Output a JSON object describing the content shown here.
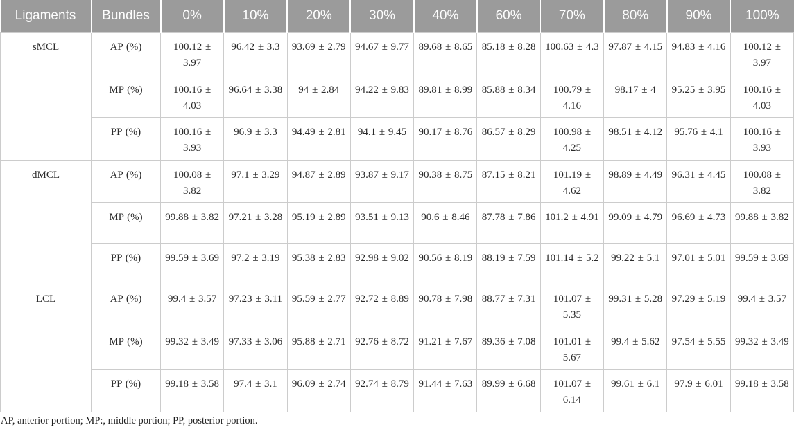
{
  "colors": {
    "header_bg": "#9b9b9b",
    "header_text": "#fdfdfd",
    "border": "#cccccc",
    "body_text": "#2b2b2b"
  },
  "footnote": "AP, anterior portion; MP:, middle portion; PP, posterior portion.",
  "table": {
    "header": [
      "Ligaments",
      "Bundles",
      "0%",
      "10%",
      "20%",
      "30%",
      "40%",
      "60%",
      "70%",
      "80%",
      "90%",
      "100%"
    ],
    "groups": [
      {
        "ligament": "sMCL",
        "rows": [
          {
            "bundle": "AP (%)",
            "values": [
              "100.12 ± 3.97",
              "96.42 ± 3.3",
              "93.69 ± 2.79",
              "94.67 ± 9.77",
              "89.68 ± 8.65",
              "85.18 ± 8.28",
              "100.63 ± 4.3",
              "97.87 ± 4.15",
              "94.83 ± 4.16",
              "100.12 ± 3.97"
            ]
          },
          {
            "bundle": "MP (%)",
            "values": [
              "100.16 ± 4.03",
              "96.64 ± 3.38",
              "94 ± 2.84",
              "94.22 ± 9.83",
              "89.81 ± 8.99",
              "85.88 ± 8.34",
              "100.79 ± 4.16",
              "98.17 ± 4",
              "95.25 ± 3.95",
              "100.16 ± 4.03"
            ]
          },
          {
            "bundle": "PP (%)",
            "values": [
              "100.16 ± 3.93",
              "96.9 ± 3.3",
              "94.49 ± 2.81",
              "94.1 ± 9.45",
              "90.17 ± 8.76",
              "86.57 ± 8.29",
              "100.98 ± 4.25",
              "98.51 ± 4.12",
              "95.76 ± 4.1",
              "100.16 ± 3.93"
            ]
          }
        ]
      },
      {
        "ligament": "dMCL",
        "rows": [
          {
            "bundle": "AP (%)",
            "values": [
              "100.08 ± 3.82",
              "97.1 ± 3.29",
              "94.87 ± 2.89",
              "93.87 ± 9.17",
              "90.38 ± 8.75",
              "87.15 ± 8.21",
              "101.19 ± 4.62",
              "98.89 ± 4.49",
              "96.31 ± 4.45",
              "100.08 ± 3.82"
            ]
          },
          {
            "bundle": "MP (%)",
            "values": [
              "99.88 ± 3.82",
              "97.21 ± 3.28",
              "95.19 ± 2.89",
              "93.51 ± 9.13",
              "90.6 ± 8.46",
              "87.78 ± 7.86",
              "101.2 ± 4.91",
              "99.09 ± 4.79",
              "96.69 ± 4.73",
              "99.88 ± 3.82"
            ]
          },
          {
            "bundle": "PP (%)",
            "values": [
              "99.59 ± 3.69",
              "97.2 ± 3.19",
              "95.38 ± 2.83",
              "92.98 ± 9.02",
              "90.56 ± 8.19",
              "88.19 ± 7.59",
              "101.14 ± 5.2",
              "99.22 ± 5.1",
              "97.01 ± 5.01",
              "99.59 ± 3.69"
            ]
          }
        ]
      },
      {
        "ligament": "LCL",
        "rows": [
          {
            "bundle": "AP (%)",
            "values": [
              "99.4 ± 3.57",
              "97.23 ± 3.11",
              "95.59 ± 2.77",
              "92.72 ± 8.89",
              "90.78 ± 7.98",
              "88.77 ± 7.31",
              "101.07 ± 5.35",
              "99.31 ± 5.28",
              "97.29 ± 5.19",
              "99.4 ± 3.57"
            ]
          },
          {
            "bundle": "MP (%)",
            "values": [
              "99.32 ± 3.49",
              "97.33 ± 3.06",
              "95.88 ± 2.71",
              "92.76 ± 8.72",
              "91.21 ± 7.67",
              "89.36 ± 7.08",
              "101.01 ± 5.67",
              "99.4 ± 5.62",
              "97.54 ± 5.55",
              "99.32 ± 3.49"
            ]
          },
          {
            "bundle": "PP (%)",
            "values": [
              "99.18 ± 3.58",
              "97.4 ± 3.1",
              "96.09 ± 2.74",
              "92.74 ± 8.79",
              "91.44 ± 7.63",
              "89.99 ± 6.68",
              "101.07 ± 6.14",
              "99.61 ± 6.1",
              "97.9 ± 6.01",
              "99.18 ± 3.58"
            ]
          }
        ]
      }
    ]
  }
}
